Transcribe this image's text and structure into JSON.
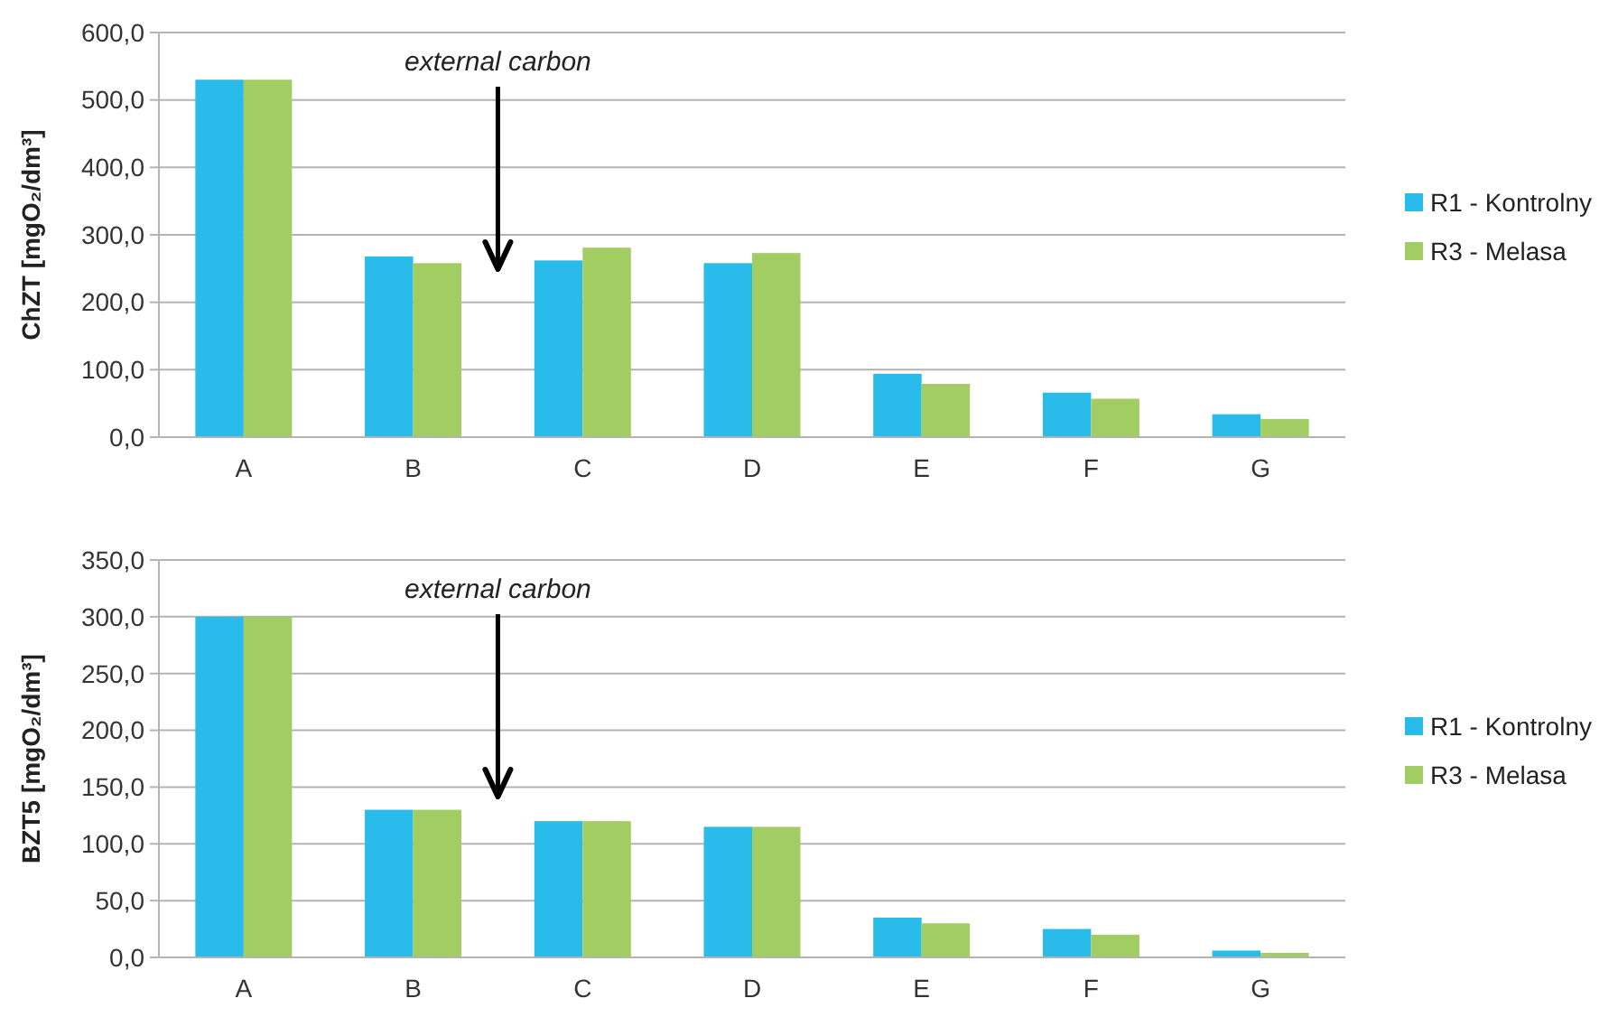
{
  "chart_data": [
    {
      "type": "bar",
      "ylabel": "ChZT [mgO₂/dm³]",
      "categories": [
        "A",
        "B",
        "C",
        "D",
        "E",
        "F",
        "G"
      ],
      "series": [
        {
          "name": "R1 - Kontrolny",
          "color": "#29bbea",
          "values": [
            530,
            268,
            262,
            258,
            94,
            66,
            34
          ]
        },
        {
          "name": "R3 - Melasa",
          "color": "#a2cd62",
          "values": [
            530,
            258,
            281,
            273,
            79,
            57,
            27
          ]
        }
      ],
      "ylim": [
        0,
        600
      ],
      "yticks": [
        {
          "value": 0,
          "label": "0,0"
        },
        {
          "value": 100,
          "label": "100,0"
        },
        {
          "value": 200,
          "label": "200,0"
        },
        {
          "value": 300,
          "label": "300,0"
        },
        {
          "value": 400,
          "label": "400,0"
        },
        {
          "value": 500,
          "label": "500,0"
        },
        {
          "value": 600,
          "label": "600,0"
        }
      ],
      "grid": "y",
      "legend": "right",
      "annotations": [
        "external carbon"
      ]
    },
    {
      "type": "bar",
      "ylabel": "BZT5 [mgO₂/dm³]",
      "categories": [
        "A",
        "B",
        "C",
        "D",
        "E",
        "F",
        "G"
      ],
      "series": [
        {
          "name": "R1 - Kontrolny",
          "color": "#29bbea",
          "values": [
            300,
            130,
            120,
            115,
            35,
            25,
            6
          ]
        },
        {
          "name": "R3 - Melasa",
          "color": "#a2cd62",
          "values": [
            300,
            130,
            120,
            115,
            30,
            20,
            4
          ]
        }
      ],
      "ylim": [
        0,
        350
      ],
      "yticks": [
        {
          "value": 0,
          "label": "0,0"
        },
        {
          "value": 50,
          "label": "50,0"
        },
        {
          "value": 100,
          "label": "100,0"
        },
        {
          "value": 150,
          "label": "150,0"
        },
        {
          "value": 200,
          "label": "200,0"
        },
        {
          "value": 250,
          "label": "250,0"
        },
        {
          "value": 300,
          "label": "300,0"
        },
        {
          "value": 350,
          "label": "350,0"
        }
      ],
      "grid": "y",
      "legend": "right",
      "annotations": [
        "external carbon"
      ]
    }
  ]
}
